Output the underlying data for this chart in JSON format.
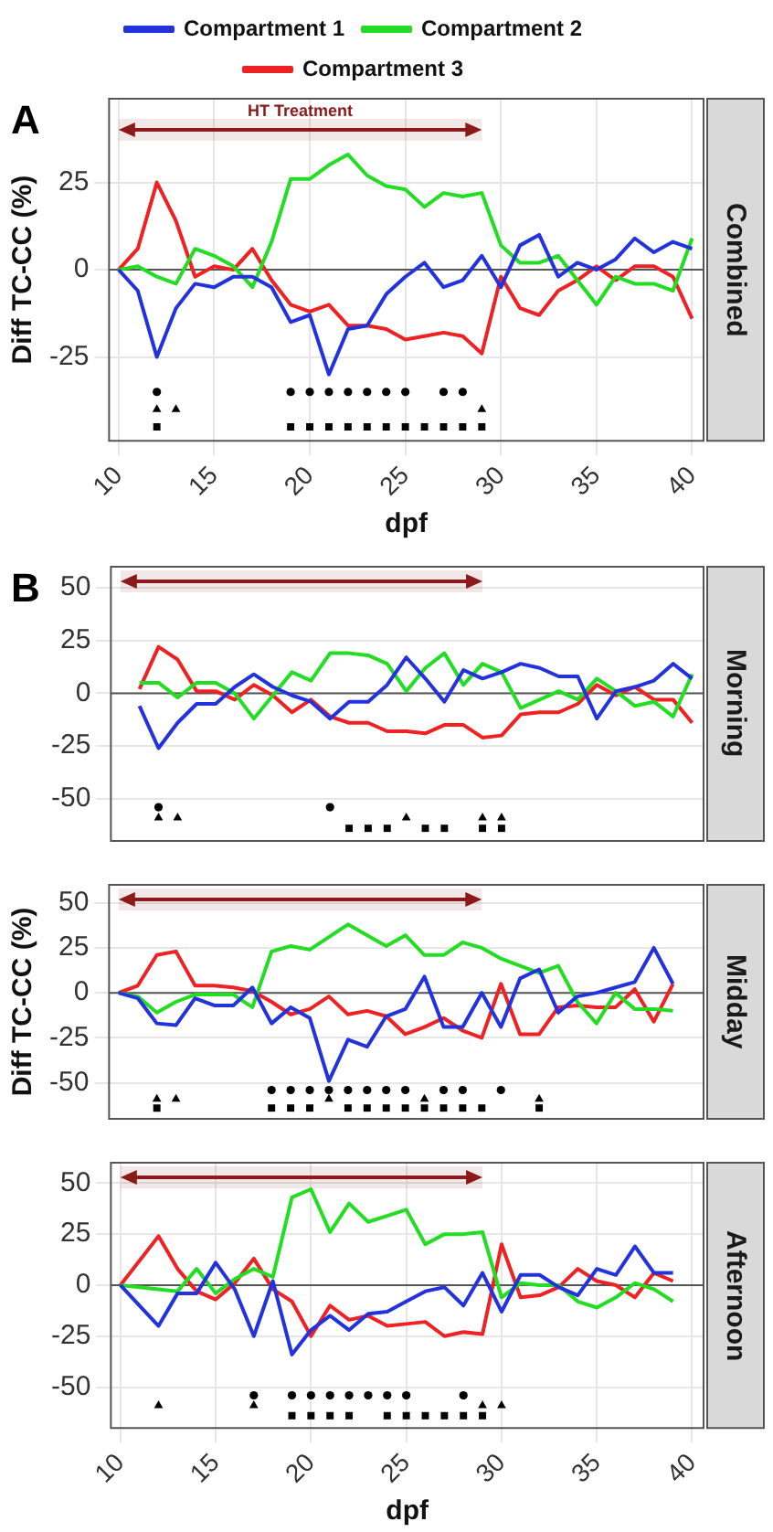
{
  "chart_data": [
    {
      "type": "line",
      "y2label": "Combined",
      "ylabel": "Diff TC-CC (%)",
      "xlabel": "dpf",
      "annotations": [
        "A"
      ],
      "legend": "top",
      "grid": true,
      "xlim": [
        9.5,
        40.6
      ],
      "xticks": [
        10,
        15,
        20,
        25,
        30,
        35,
        40
      ],
      "ylim": [
        -49,
        49
      ],
      "yticks": [
        -25,
        0,
        25
      ],
      "x": [
        10,
        11,
        12,
        13,
        14,
        15,
        16,
        17,
        18,
        19,
        20,
        21,
        22,
        23,
        24,
        25,
        26,
        27,
        28,
        29,
        30,
        31,
        32,
        33,
        34,
        35,
        36,
        37,
        38,
        39,
        40
      ],
      "ref_lines": [
        {
          "axis": "y",
          "value": 0,
          "color": "#555555"
        }
      ],
      "bands": [
        {
          "axis": "x",
          "from": 10,
          "to": 29,
          "label": "HT Treatment",
          "color": "#8b1a1a"
        }
      ],
      "series": [
        {
          "name": "Compartment 1",
          "color": "#2233dd",
          "values": [
            0,
            -6,
            -25,
            -11,
            -4,
            -5,
            -2,
            -2,
            -5,
            -15,
            -13,
            -30,
            -17,
            -16,
            -7,
            -2,
            2,
            -5,
            -3,
            4,
            -5,
            7,
            10,
            -2,
            2,
            0,
            3,
            9,
            5,
            8,
            6
          ]
        },
        {
          "name": "Compartment 2",
          "color": "#22dd22",
          "values": [
            0,
            1,
            -2,
            -4,
            6,
            4,
            1,
            -5,
            8,
            26,
            26,
            30,
            33,
            27,
            24,
            23,
            18,
            22,
            21,
            22,
            7,
            2,
            2,
            4,
            -3,
            -10,
            -2,
            -4,
            -4,
            -6,
            9
          ]
        },
        {
          "name": "Compartment 3",
          "color": "#ee2222",
          "values": [
            0,
            6,
            25,
            14,
            -2,
            1,
            0,
            6,
            -3,
            -10,
            -12,
            -10,
            -16,
            -16,
            -17,
            -20,
            -19,
            -18,
            -19,
            -24,
            -2,
            -11,
            -13,
            -6,
            -3,
            1,
            -3,
            1,
            1,
            -2,
            -14
          ]
        },
        {
          "type": "scatter",
          "marker": "circle",
          "color": "#000000",
          "x": [
            12,
            19,
            20,
            21,
            22,
            23,
            24,
            25,
            27,
            28
          ],
          "values": [
            -35,
            -35,
            -35,
            -35,
            -35,
            -35,
            -35,
            -35,
            -35,
            -35
          ]
        },
        {
          "type": "scatter",
          "marker": "triangle",
          "color": "#000000",
          "x": [
            12,
            13,
            29
          ],
          "values": [
            -40,
            -40,
            -40
          ]
        },
        {
          "type": "scatter",
          "marker": "square",
          "color": "#000000",
          "x": [
            12,
            19,
            20,
            21,
            22,
            23,
            24,
            25,
            26,
            27,
            28,
            29
          ],
          "values": [
            -45,
            -45,
            -45,
            -45,
            -45,
            -45,
            -45,
            -45,
            -45,
            -45,
            -45,
            -45
          ]
        }
      ]
    },
    {
      "type": "line",
      "y2label": "Morning",
      "annotations": [
        "B"
      ],
      "grid": true,
      "tick_labels": "y",
      "xlim": [
        9.5,
        40.6
      ],
      "ylim": [
        -70,
        60
      ],
      "yticks": [
        -50,
        -25,
        0,
        25,
        50
      ],
      "x": [
        11,
        12,
        13,
        14,
        15,
        16,
        17,
        18,
        19,
        20,
        21,
        22,
        23,
        24,
        25,
        26,
        27,
        28,
        29,
        30,
        31,
        32,
        33,
        34,
        35,
        36,
        37,
        38,
        39,
        40
      ],
      "ref_lines": [
        {
          "axis": "y",
          "value": 0,
          "color": "#555555"
        }
      ],
      "bands": [
        {
          "axis": "x",
          "from": 10,
          "to": 29,
          "color": "#8b1a1a"
        }
      ],
      "series": [
        {
          "color": "#2233dd",
          "values": [
            -6,
            -26,
            -14,
            -5,
            -5,
            3,
            9,
            3,
            -1,
            -4,
            -12,
            -4,
            -4,
            4,
            17,
            7,
            -4,
            11,
            7,
            10,
            14,
            12,
            8,
            8,
            -12,
            1,
            3,
            6,
            14,
            7
          ]
        },
        {
          "color": "#22dd22",
          "values": [
            5,
            5,
            -2,
            5,
            5,
            0,
            -12,
            -1,
            10,
            6,
            19,
            19,
            18,
            14,
            1,
            12,
            19,
            4,
            14,
            10,
            -7,
            -3,
            1,
            -3,
            7,
            1,
            -6,
            -4,
            -11,
            9
          ]
        },
        {
          "color": "#ee2222",
          "values": [
            2,
            22,
            16,
            1,
            1,
            -3,
            4,
            -1,
            -9,
            -3,
            -11,
            -14,
            -14,
            -18,
            -18,
            -19,
            -15,
            -15,
            -21,
            -20,
            -10,
            -9,
            -9,
            -5,
            4,
            -1,
            3,
            -3,
            -3,
            -14
          ]
        },
        {
          "type": "scatter",
          "marker": "circle",
          "color": "#000000",
          "x": [
            12,
            21
          ],
          "values": [
            -54,
            -54
          ]
        },
        {
          "type": "scatter",
          "marker": "triangle",
          "color": "#000000",
          "x": [
            12,
            13,
            25,
            29,
            30
          ],
          "values": [
            -59,
            -59,
            -59,
            -59,
            -59
          ]
        },
        {
          "type": "scatter",
          "marker": "square",
          "color": "#000000",
          "x": [
            22,
            23,
            24,
            26,
            27,
            29,
            30
          ],
          "values": [
            -64,
            -64,
            -64,
            -64,
            -64,
            -64,
            -64
          ]
        }
      ]
    },
    {
      "type": "line",
      "y2label": "Midday",
      "ylabel": "Diff TC-CC (%)",
      "grid": true,
      "tick_labels": "y",
      "xlim": [
        9.5,
        40.6
      ],
      "ylim": [
        -70,
        60
      ],
      "yticks": [
        -50,
        -25,
        0,
        25,
        50
      ],
      "x": [
        10,
        11,
        12,
        13,
        14,
        15,
        16,
        17,
        18,
        19,
        20,
        21,
        22,
        23,
        24,
        25,
        26,
        27,
        28,
        29,
        30,
        31,
        32,
        33,
        34,
        35,
        36,
        37,
        38,
        39
      ],
      "ref_lines": [
        {
          "axis": "y",
          "value": 0,
          "color": "#555555"
        }
      ],
      "bands": [
        {
          "axis": "x",
          "from": 10,
          "to": 29,
          "color": "#8b1a1a"
        }
      ],
      "series": [
        {
          "color": "#2233dd",
          "values": [
            0,
            -3,
            -17,
            -18,
            -3,
            -7,
            -7,
            3,
            -17,
            -8,
            -14,
            -49,
            -26,
            -30,
            -13,
            -9,
            9,
            -19,
            -19,
            0,
            -19,
            8,
            13,
            -11,
            -2,
            0,
            3,
            6,
            25,
            5
          ]
        },
        {
          "color": "#22dd22",
          "values": [
            0,
            -2,
            -11,
            -5,
            -1,
            -1,
            -1,
            -8,
            23,
            26,
            24,
            31,
            38,
            32,
            26,
            32,
            21,
            21,
            28,
            25,
            19,
            15,
            11,
            15,
            -5,
            -17,
            0,
            -9,
            -9,
            -10
          ]
        },
        {
          "color": "#ee2222",
          "values": [
            0,
            4,
            21,
            23,
            4,
            4,
            3,
            1,
            -5,
            -12,
            -9,
            -2,
            -12,
            -10,
            -13,
            -23,
            -19,
            -14,
            -21,
            -25,
            5,
            -23,
            -23,
            -8,
            -7,
            -8,
            -8,
            2,
            -16,
            5
          ]
        },
        {
          "type": "scatter",
          "marker": "circle",
          "color": "#000000",
          "x": [
            18,
            19,
            20,
            21,
            22,
            23,
            24,
            25,
            27,
            28,
            30
          ],
          "values": [
            -54,
            -54,
            -54,
            -54,
            -54,
            -54,
            -54,
            -54,
            -54,
            -54,
            -54
          ]
        },
        {
          "type": "scatter",
          "marker": "triangle",
          "color": "#000000",
          "x": [
            12,
            13,
            21,
            26,
            32
          ],
          "values": [
            -59,
            -59,
            -59,
            -59,
            -59
          ]
        },
        {
          "type": "scatter",
          "marker": "square",
          "color": "#000000",
          "x": [
            12,
            18,
            19,
            20,
            22,
            23,
            24,
            25,
            26,
            27,
            28,
            29,
            32
          ],
          "values": [
            -64,
            -64,
            -64,
            -64,
            -64,
            -64,
            -64,
            -64,
            -64,
            -64,
            -64,
            -64,
            -64
          ]
        }
      ]
    },
    {
      "type": "line",
      "y2label": "Afternoon",
      "xlabel": "dpf",
      "grid": true,
      "xlim": [
        9.5,
        40.6
      ],
      "xticks": [
        10,
        15,
        20,
        25,
        30,
        35,
        40
      ],
      "ylim": [
        -70,
        60
      ],
      "yticks": [
        -50,
        -25,
        0,
        25,
        50
      ],
      "x": [
        10,
        11,
        12,
        13,
        14,
        15,
        16,
        17,
        18,
        19,
        20,
        21,
        22,
        23,
        24,
        25,
        26,
        27,
        28,
        29,
        30,
        31,
        32,
        33,
        34,
        35,
        36,
        37,
        38,
        39
      ],
      "ref_lines": [
        {
          "axis": "y",
          "value": 0,
          "color": "#555555"
        }
      ],
      "bands": [
        {
          "axis": "x",
          "from": 10,
          "to": 29,
          "color": "#8b1a1a"
        }
      ],
      "series": [
        {
          "color": "#2233dd",
          "values": [
            0,
            -10,
            -20,
            -4,
            -4,
            11,
            -2,
            -25,
            2,
            -34,
            -22,
            -15,
            -22,
            -14,
            -13,
            -8,
            -3,
            -1,
            -10,
            6,
            -13,
            5,
            5,
            -1,
            -5,
            8,
            5,
            19,
            6,
            6
          ]
        },
        {
          "color": "#22dd22",
          "values": [
            0,
            -1,
            -2,
            -3,
            8,
            -4,
            3,
            8,
            4,
            43,
            47,
            26,
            40,
            31,
            34,
            37,
            20,
            25,
            25,
            26,
            -6,
            1,
            0,
            0,
            -8,
            -11,
            -6,
            1,
            -2,
            -8
          ]
        },
        {
          "color": "#ee2222",
          "values": [
            0,
            12,
            24,
            8,
            -3,
            -7,
            1,
            13,
            -2,
            -8,
            -25,
            -10,
            -17,
            -15,
            -20,
            -19,
            -18,
            -25,
            -23,
            -24,
            20,
            -6,
            -5,
            -1,
            8,
            2,
            0,
            -6,
            6,
            2
          ]
        },
        {
          "type": "scatter",
          "marker": "circle",
          "color": "#000000",
          "x": [
            17,
            19,
            20,
            21,
            22,
            23,
            24,
            25,
            28
          ],
          "values": [
            -54,
            -54,
            -54,
            -54,
            -54,
            -54,
            -54,
            -54,
            -54
          ]
        },
        {
          "type": "scatter",
          "marker": "triangle",
          "color": "#000000",
          "x": [
            12,
            17,
            29,
            30
          ],
          "values": [
            -59,
            -59,
            -59,
            -59
          ]
        },
        {
          "type": "scatter",
          "marker": "square",
          "color": "#000000",
          "x": [
            19,
            20,
            21,
            22,
            24,
            25,
            26,
            27,
            28,
            29
          ],
          "values": [
            -64,
            -64,
            -64,
            -64,
            -64,
            -64,
            -64,
            -64,
            -64,
            -64
          ]
        }
      ]
    }
  ]
}
